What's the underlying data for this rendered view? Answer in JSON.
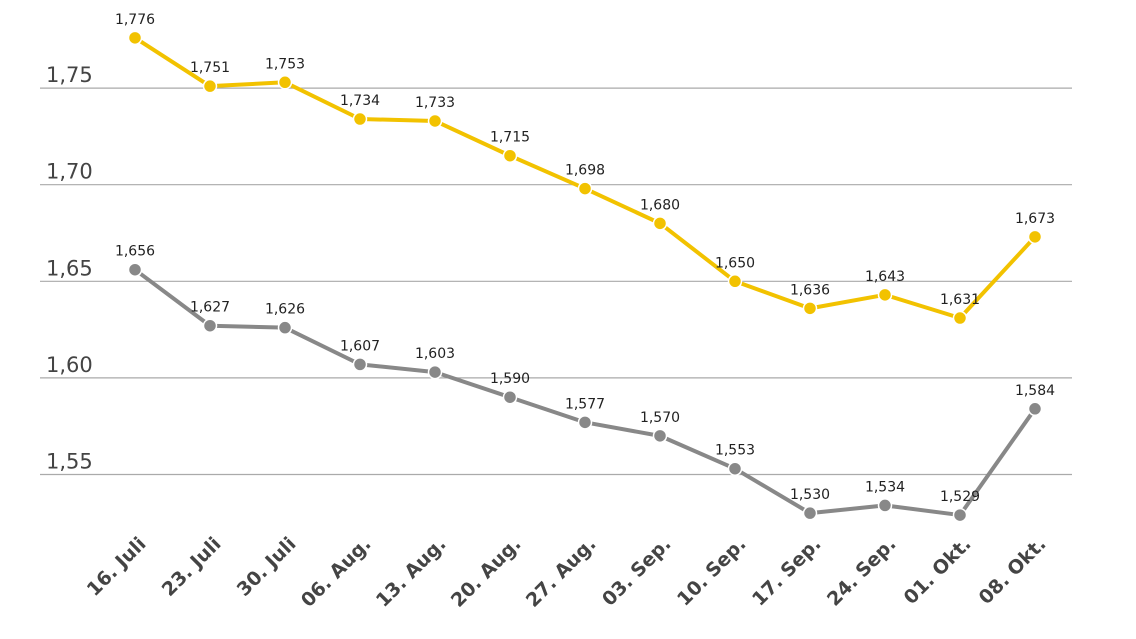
{
  "chart_data": {
    "type": "line",
    "categories": [
      "16. Juli",
      "23. Juli",
      "30. Juli",
      "06. Aug.",
      "13. Aug.",
      "20. Aug.",
      "27. Aug.",
      "03. Sep.",
      "10. Sep.",
      "17. Sep.",
      "24. Sep.",
      "01. Okt.",
      "08. Okt."
    ],
    "series": [
      {
        "values": [
          1.776,
          1.751,
          1.753,
          1.734,
          1.733,
          1.715,
          1.698,
          1.68,
          1.65,
          1.636,
          1.643,
          1.631,
          1.673
        ],
        "labels": [
          "1,776",
          "1,751",
          "1,753",
          "1,734",
          "1,733",
          "1,715",
          "1,698",
          "1,680",
          "1,650",
          "1,636",
          "1,643",
          "1,631",
          "1,673"
        ],
        "color": "#f2c200"
      },
      {
        "values": [
          1.656,
          1.627,
          1.626,
          1.607,
          1.603,
          1.59,
          1.577,
          1.57,
          1.553,
          1.53,
          1.534,
          1.529,
          1.584
        ],
        "labels": [
          "1,656",
          "1,627",
          "1,626",
          "1,607",
          "1,603",
          "1,590",
          "1,577",
          "1,570",
          "1,553",
          "1,530",
          "1,534",
          "1,529",
          "1,584"
        ],
        "color": "#888888"
      }
    ],
    "yticks": [
      1.55,
      1.6,
      1.65,
      1.7,
      1.75
    ],
    "ytick_labels": [
      "1,55",
      "1,60",
      "1,65",
      "1,70",
      "1,75"
    ],
    "ylim": [
      1.5,
      1.8
    ],
    "grid": true,
    "gridline_color": "#aaaaaa",
    "title": "",
    "xlabel": "",
    "ylabel": ""
  }
}
